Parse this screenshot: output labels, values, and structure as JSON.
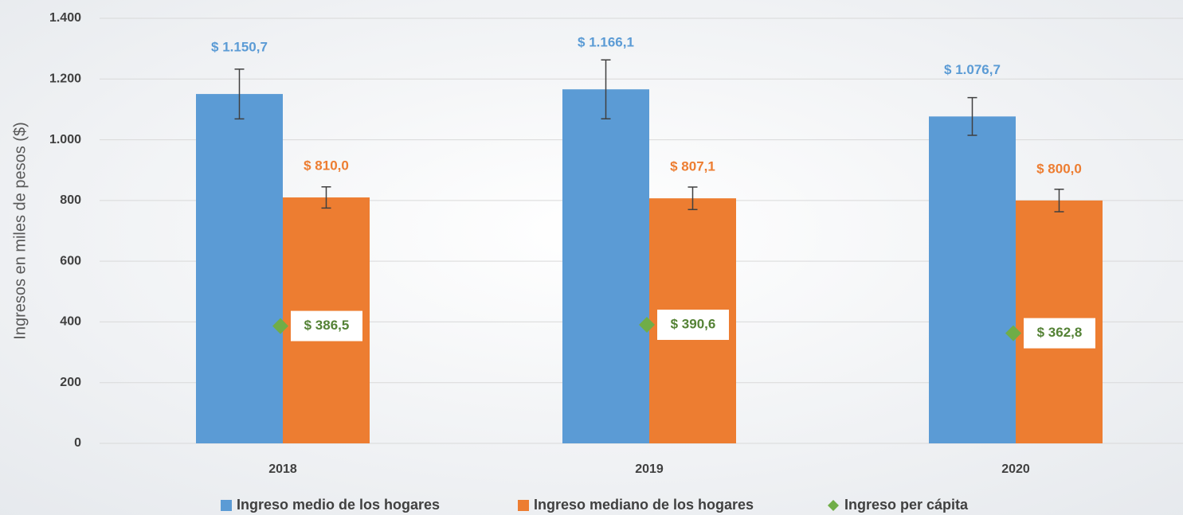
{
  "chart_data": {
    "type": "bar",
    "y_label": "Ingresos en miles de pesos ($)",
    "categories": [
      "2018",
      "2019",
      "2020"
    ],
    "series": [
      {
        "name": "Ingreso medio de los hogares",
        "color": "#5b9bd5",
        "label_color": "#5b9bd5",
        "values": [
          1150.7,
          1166.1,
          1076.7
        ],
        "errors": [
          82,
          97,
          62
        ],
        "value_labels": [
          "$ 1.150,7",
          "$ 1.166,1",
          "$ 1.076,7"
        ]
      },
      {
        "name": "Ingreso mediano de los hogares",
        "color": "#ed7d31",
        "label_color": "#ed7d31",
        "values": [
          810.0,
          807.1,
          800.0
        ],
        "errors": [
          35,
          37,
          37
        ],
        "value_labels": [
          "$ 810,0",
          "$ 807,1",
          "$ 800,0"
        ]
      },
      {
        "name": "Ingreso per cápita",
        "type": "scatter",
        "marker": "diamond",
        "color": "#70ad47",
        "label_color": "#548235",
        "values": [
          386.5,
          390.6,
          362.8
        ],
        "value_labels": [
          "$ 386,5",
          "$ 390,6",
          "$ 362,8"
        ]
      }
    ],
    "ylim": [
      0,
      1400
    ],
    "yticks": [
      0,
      200,
      400,
      600,
      800,
      {
        "value": 1000,
        "label": "1.000"
      },
      {
        "value": 1200,
        "label": "1.200"
      },
      {
        "value": 1400,
        "label": "1.400"
      }
    ],
    "grid": true,
    "error_bars": true,
    "legend": "bottom"
  }
}
